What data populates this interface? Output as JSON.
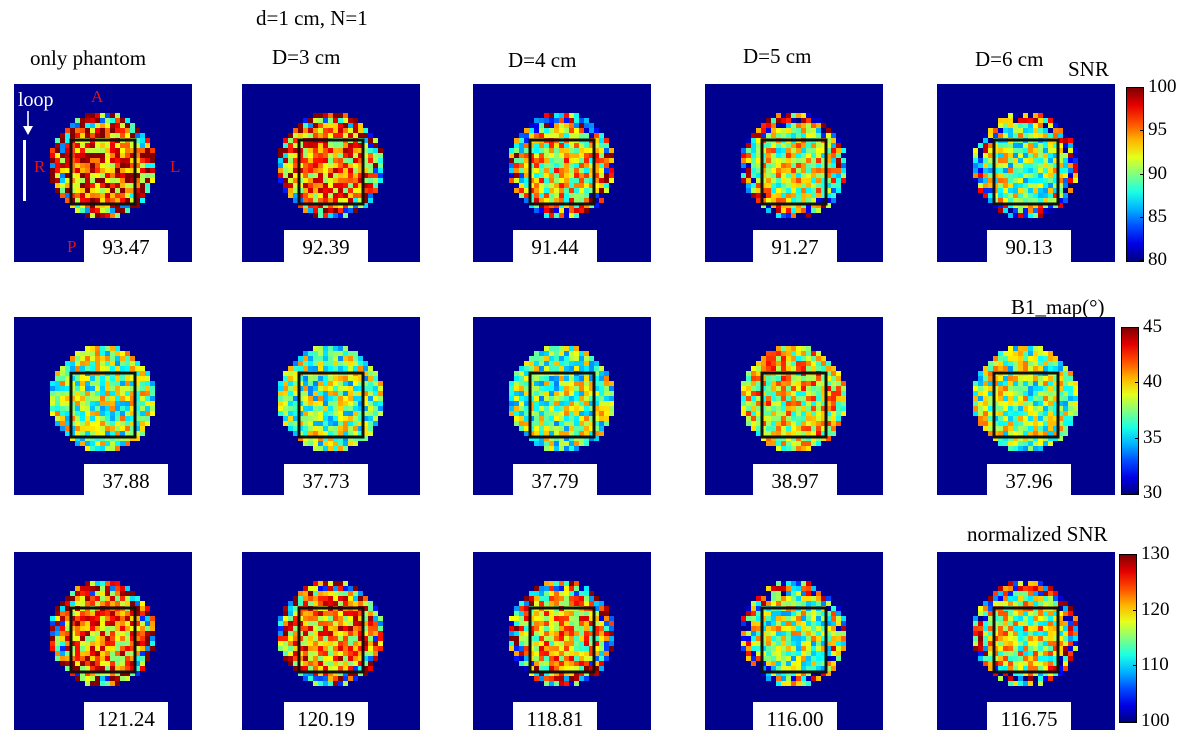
{
  "header": {
    "top_label": "d=1 cm, N=1"
  },
  "columns": [
    "only phantom",
    "D=3 cm",
    "D=4 cm",
    "D=5 cm",
    "D=6 cm"
  ],
  "annotations": {
    "loop_label": "loop",
    "anterior": "A",
    "posterior": "P",
    "right": "R",
    "left": "L"
  },
  "colors": {
    "background_map": "#00008f",
    "roi_box": "#111111"
  },
  "chart_data": [
    {
      "type": "heatmap",
      "title": "SNR",
      "colorbar": {
        "min": 80,
        "max": 100,
        "ticks": [
          80,
          85,
          90,
          95,
          100
        ]
      },
      "values": [
        "93.47",
        "92.39",
        "91.44",
        "91.27",
        "90.13"
      ]
    },
    {
      "type": "heatmap",
      "title": "B1_map(°)",
      "colorbar": {
        "min": 30,
        "max": 45,
        "ticks": [
          30,
          35,
          40,
          45
        ]
      },
      "values": [
        "37.88",
        "37.73",
        "37.79",
        "38.97",
        "37.96"
      ]
    },
    {
      "type": "heatmap",
      "title": "normalized SNR",
      "colorbar": {
        "min": 100,
        "max": 130,
        "ticks": [
          100,
          110,
          120,
          130
        ]
      },
      "values": [
        "121.24",
        "120.19",
        "118.81",
        "116.00",
        "116.75"
      ]
    }
  ]
}
